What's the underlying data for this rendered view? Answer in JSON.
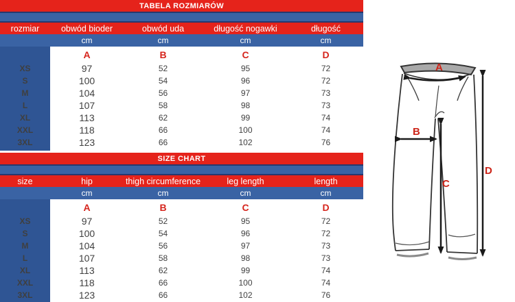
{
  "colors": {
    "red_band": "#e5231b",
    "blue_band": "#3a63a4",
    "blue_column": "#2f5594",
    "navy_border": "#27386e",
    "letter_red": "#d6251d",
    "value_text": "#3f3f3f",
    "waistband_gray": "#a9a9a9",
    "outline_dark": "#333333"
  },
  "tables": [
    {
      "banner": "TABELA ROZMIARÓW",
      "columns": [
        "rozmiar",
        "obwód bioder",
        "obwód uda",
        "długość nogawki",
        "długość"
      ],
      "unit": "cm",
      "letters": [
        "A",
        "B",
        "C",
        "D"
      ],
      "sizes": [
        "XS",
        "S",
        "M",
        "L",
        "XL",
        "XXL",
        "3XL"
      ],
      "rows": [
        [
          97,
          52,
          95,
          72
        ],
        [
          100,
          54,
          96,
          72
        ],
        [
          104,
          56,
          97,
          73
        ],
        [
          107,
          58,
          98,
          73
        ],
        [
          113,
          62,
          99,
          74
        ],
        [
          118,
          66,
          100,
          74
        ],
        [
          123,
          66,
          102,
          76
        ]
      ]
    },
    {
      "banner": "SIZE CHART",
      "columns": [
        "size",
        "hip",
        "thigh circumference",
        "leg length",
        "length"
      ],
      "unit": "cm",
      "letters": [
        "A",
        "B",
        "C",
        "D"
      ],
      "sizes": [
        "XS",
        "S",
        "M",
        "L",
        "XL",
        "XXL",
        "3XL"
      ],
      "rows": [
        [
          97,
          52,
          95,
          72
        ],
        [
          100,
          54,
          96,
          72
        ],
        [
          104,
          56,
          97,
          73
        ],
        [
          107,
          58,
          98,
          73
        ],
        [
          113,
          62,
          99,
          74
        ],
        [
          118,
          66,
          100,
          74
        ],
        [
          123,
          66,
          102,
          76
        ]
      ]
    }
  ],
  "diagram": {
    "labels": {
      "waist": "A",
      "thigh": "B",
      "inseam": "C",
      "length": "D"
    }
  }
}
